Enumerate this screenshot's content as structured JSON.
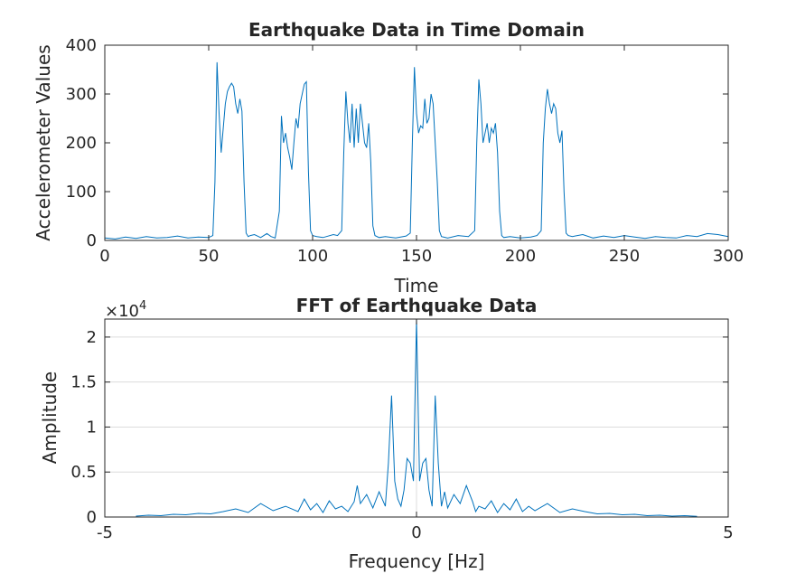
{
  "colors": {
    "line": "#0072BD",
    "axis": "#262626",
    "grid": "#dcdcdc",
    "background": "#ffffff"
  },
  "chart_data": [
    {
      "type": "line",
      "title": "Earthquake Data in Time Domain",
      "xlabel": "Time",
      "ylabel": "Accelerometer Values",
      "xlim": [
        0,
        300
      ],
      "ylim": [
        0,
        400
      ],
      "xticks": [
        "0",
        "50",
        "100",
        "150",
        "200",
        "250",
        "300"
      ],
      "yticks": [
        "0",
        "100",
        "200",
        "300",
        "400"
      ],
      "grid": false,
      "series": [
        {
          "x": [
            0,
            5,
            10,
            15,
            20,
            25,
            30,
            35,
            40,
            45,
            50,
            52,
            53,
            54,
            55,
            56,
            57,
            58,
            59,
            60,
            61,
            62,
            63,
            64,
            65,
            66,
            67,
            68,
            69,
            70,
            72,
            75,
            78,
            80,
            82,
            84,
            85,
            86,
            87,
            88,
            89,
            90,
            91,
            92,
            93,
            94,
            95,
            96,
            97,
            98,
            99,
            100,
            102,
            105,
            110,
            112,
            114,
            115,
            116,
            117,
            118,
            119,
            120,
            121,
            122,
            123,
            124,
            125,
            126,
            127,
            128,
            129,
            130,
            132,
            135,
            140,
            145,
            147,
            148,
            149,
            150,
            151,
            152,
            153,
            154,
            155,
            156,
            157,
            158,
            159,
            160,
            161,
            162,
            163,
            165,
            170,
            175,
            178,
            179,
            180,
            181,
            182,
            183,
            184,
            185,
            186,
            187,
            188,
            189,
            190,
            191,
            192,
            195,
            200,
            205,
            208,
            210,
            211,
            212,
            213,
            214,
            215,
            216,
            217,
            218,
            219,
            220,
            221,
            222,
            223,
            225,
            230,
            235,
            240,
            245,
            250,
            255,
            260,
            265,
            270,
            275,
            280,
            285,
            290,
            295,
            300
          ],
          "y": [
            5,
            3,
            7,
            4,
            8,
            5,
            6,
            9,
            5,
            7,
            6,
            10,
            120,
            365,
            260,
            180,
            230,
            280,
            305,
            315,
            322,
            315,
            280,
            260,
            290,
            265,
            120,
            15,
            8,
            10,
            12,
            6,
            14,
            8,
            5,
            60,
            255,
            200,
            220,
            190,
            170,
            145,
            200,
            250,
            230,
            280,
            300,
            320,
            325,
            140,
            20,
            10,
            8,
            6,
            12,
            10,
            20,
            180,
            305,
            240,
            200,
            280,
            190,
            270,
            200,
            280,
            240,
            200,
            190,
            240,
            160,
            30,
            10,
            6,
            8,
            5,
            9,
            15,
            200,
            355,
            260,
            220,
            235,
            230,
            290,
            240,
            250,
            300,
            280,
            200,
            120,
            20,
            8,
            7,
            5,
            10,
            8,
            20,
            200,
            330,
            280,
            200,
            220,
            240,
            200,
            230,
            220,
            240,
            180,
            60,
            10,
            6,
            8,
            5,
            7,
            10,
            20,
            200,
            270,
            310,
            280,
            260,
            280,
            270,
            220,
            200,
            225,
            100,
            15,
            10,
            8,
            12,
            5,
            9,
            6,
            10,
            7,
            4,
            8,
            6,
            5,
            10,
            8,
            14,
            12,
            8
          ]
        }
      ]
    },
    {
      "type": "line",
      "title": "FFT of Earthquake Data",
      "xlabel": "Frequency [Hz]",
      "ylabel": "Amplitude",
      "xlim": [
        -5,
        5
      ],
      "ylim": [
        0,
        22000
      ],
      "xticks": [
        "-5",
        "0",
        "5"
      ],
      "yticks": [
        "0",
        "0.5",
        "1",
        "1.5",
        "2"
      ],
      "y_exponent_label": "×10",
      "y_exponent": "4",
      "grid": true,
      "series": [
        {
          "x": [
            -4.5,
            -4.3,
            -4.1,
            -3.9,
            -3.7,
            -3.5,
            -3.3,
            -3.1,
            -2.9,
            -2.7,
            -2.5,
            -2.3,
            -2.1,
            -1.9,
            -1.8,
            -1.7,
            -1.6,
            -1.5,
            -1.4,
            -1.3,
            -1.2,
            -1.1,
            -1.0,
            -0.95,
            -0.9,
            -0.8,
            -0.7,
            -0.6,
            -0.5,
            -0.45,
            -0.4,
            -0.35,
            -0.3,
            -0.25,
            -0.2,
            -0.15,
            -0.1,
            -0.05,
            0,
            0.05,
            0.1,
            0.15,
            0.2,
            0.25,
            0.3,
            0.35,
            0.4,
            0.45,
            0.5,
            0.6,
            0.7,
            0.8,
            0.9,
            0.95,
            1.0,
            1.1,
            1.2,
            1.3,
            1.4,
            1.5,
            1.6,
            1.7,
            1.8,
            1.9,
            2.1,
            2.3,
            2.5,
            2.7,
            2.9,
            3.1,
            3.3,
            3.5,
            3.7,
            3.9,
            4.1,
            4.3,
            4.5
          ],
          "y": [
            100,
            200,
            150,
            300,
            250,
            400,
            350,
            600,
            900,
            500,
            1500,
            700,
            1200,
            600,
            2000,
            800,
            1500,
            500,
            1800,
            900,
            1200,
            600,
            1700,
            3500,
            1500,
            2500,
            1000,
            2800,
            1200,
            6000,
            13500,
            4000,
            2000,
            1200,
            3000,
            6500,
            6000,
            4000,
            22000,
            4000,
            6000,
            6500,
            3000,
            1200,
            13500,
            6000,
            1200,
            2800,
            1000,
            2500,
            1500,
            3500,
            1700,
            600,
            1200,
            900,
            1800,
            500,
            1500,
            800,
            2000,
            600,
            1200,
            700,
            1500,
            500,
            900,
            600,
            350,
            400,
            250,
            300,
            150,
            200,
            100,
            150,
            80
          ]
        }
      ]
    }
  ]
}
